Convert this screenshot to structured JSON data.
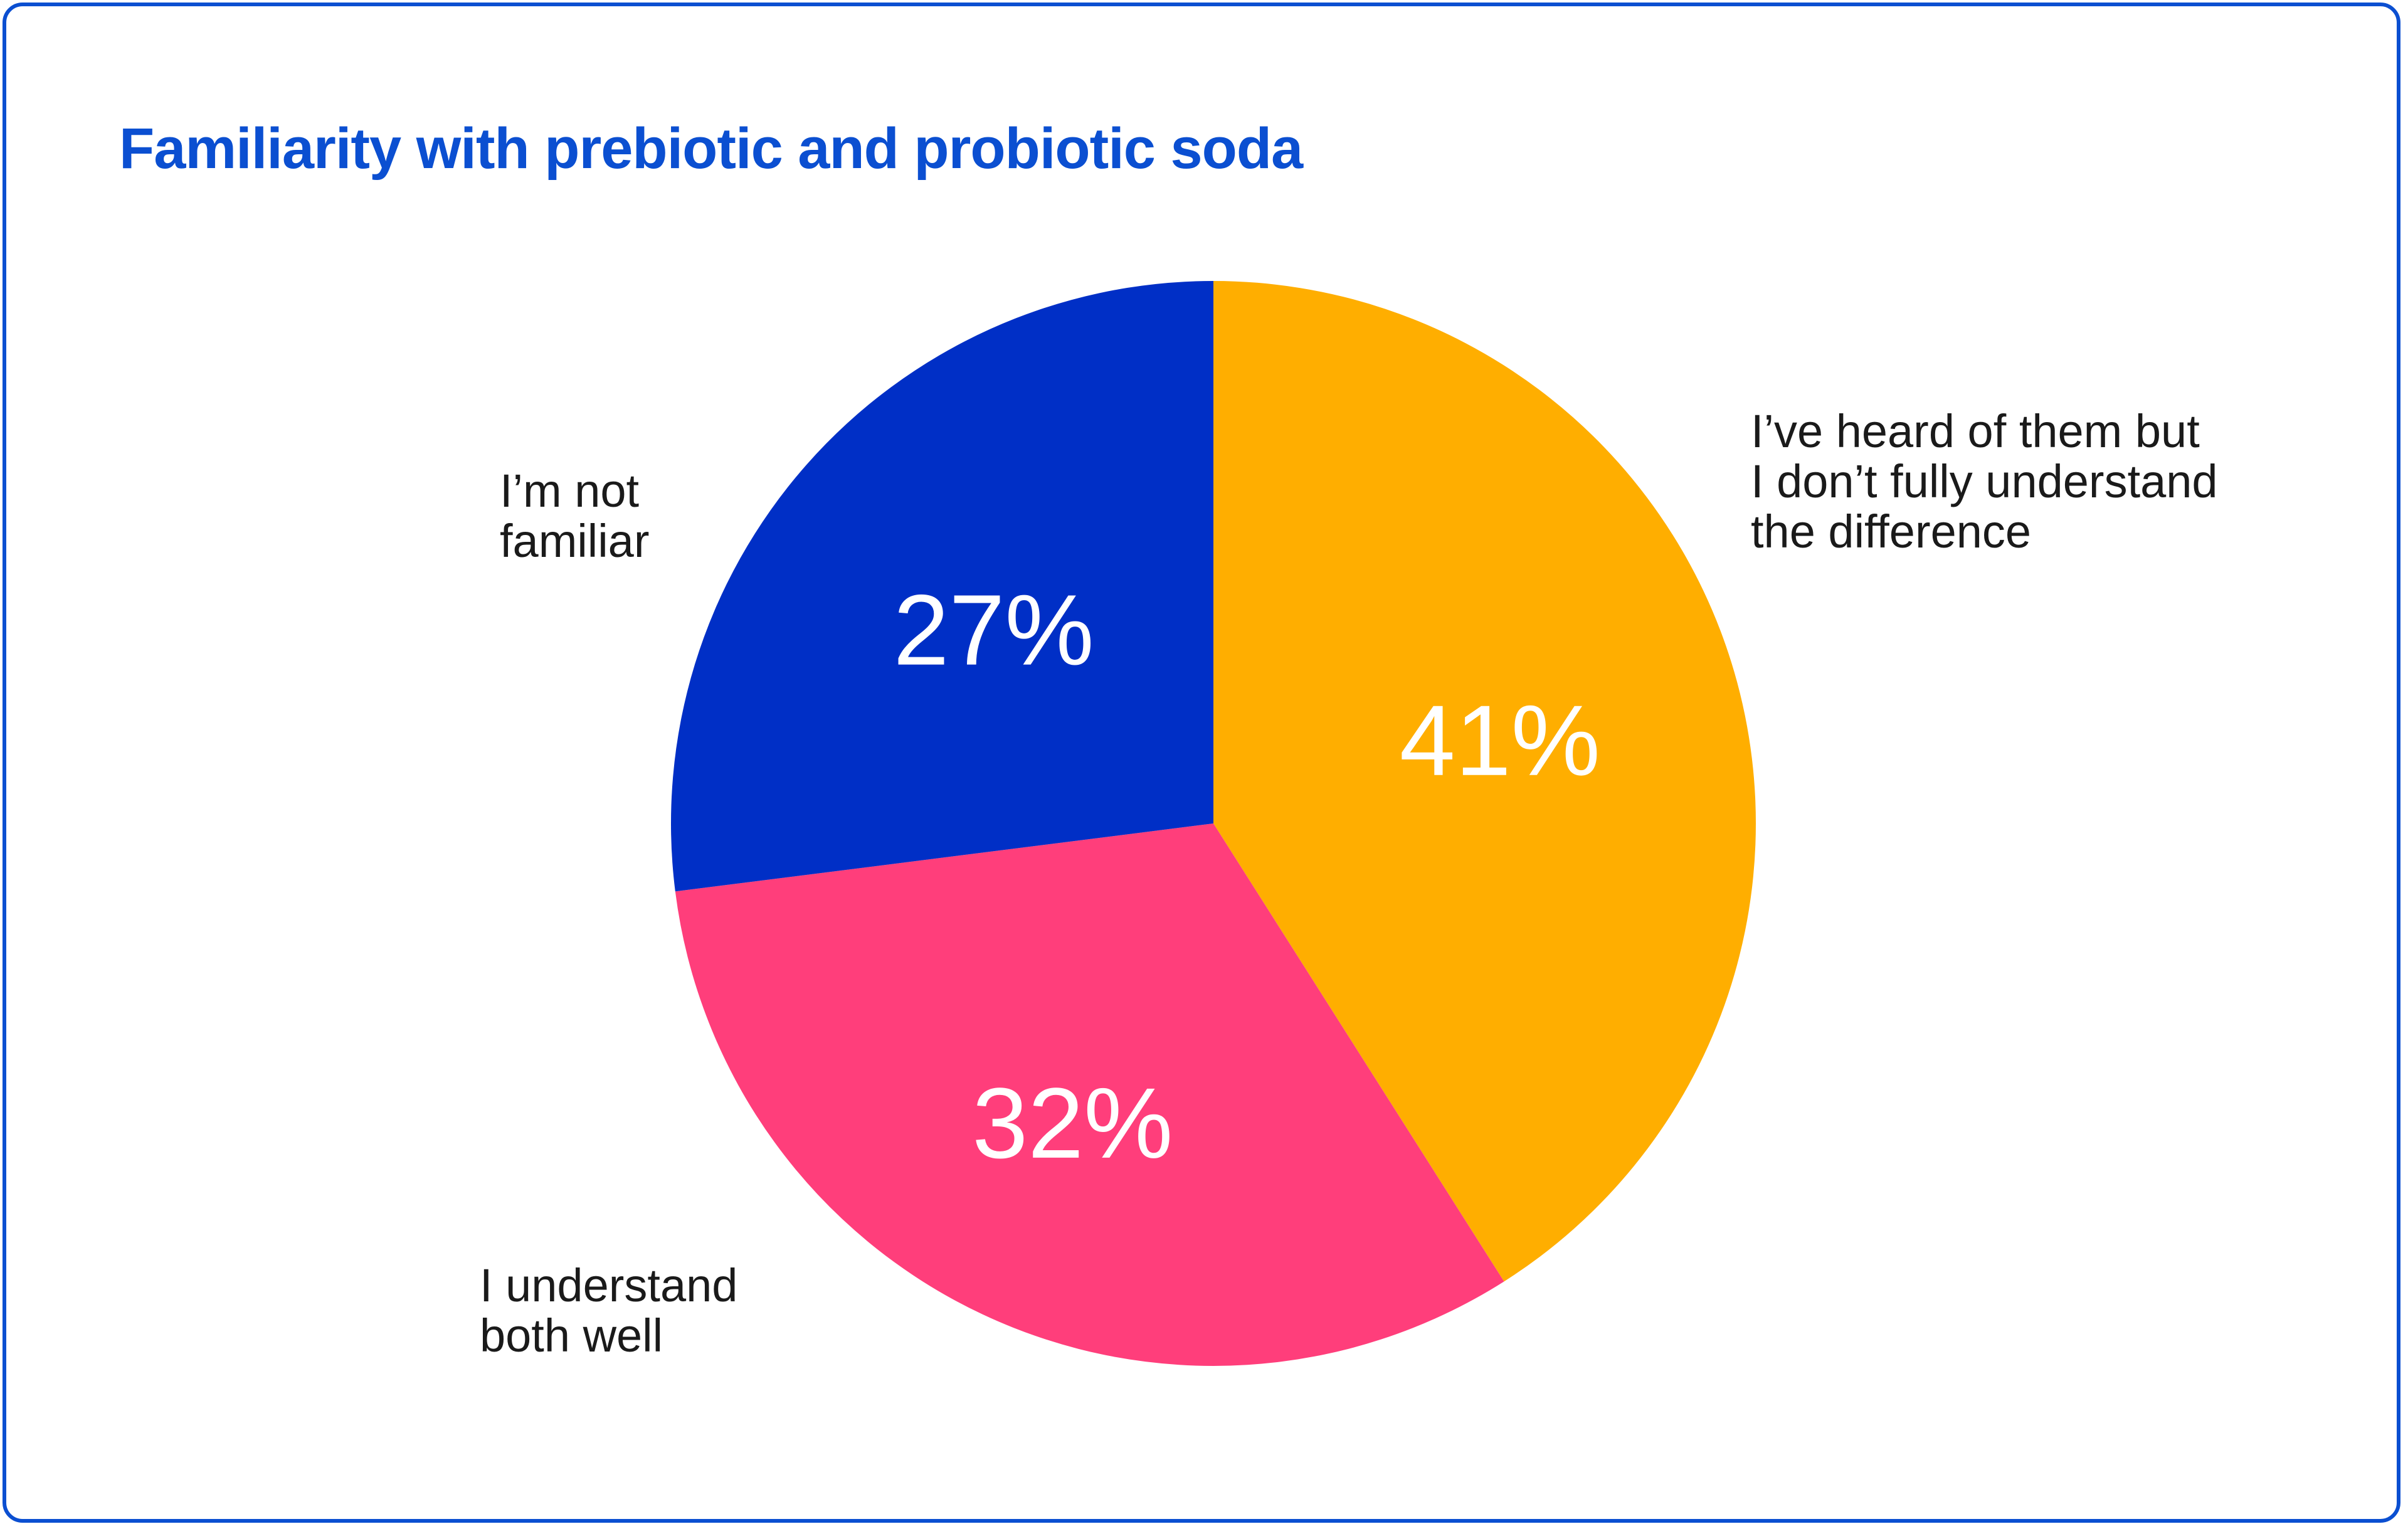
{
  "chart_data": {
    "type": "pie",
    "title": "Familiarity with prebiotic and probiotic soda",
    "slices": [
      {
        "label_lines": [
          "I’ve heard of them but",
          "I don’t fully understand",
          "the difference"
        ],
        "value": 41,
        "value_label": "41%",
        "color": "#ffae00"
      },
      {
        "label_lines": [
          "I understand",
          "both well"
        ],
        "value": 32,
        "value_label": "32%",
        "color": "#ff3e7b"
      },
      {
        "label_lines": [
          "I’m not",
          "familiar"
        ],
        "value": 27,
        "value_label": "27%",
        "color": "#002fc6"
      }
    ],
    "start_angle": "12 o'clock",
    "direction": "clockwise",
    "grid": false,
    "legend": "none (direct labels beside slices)"
  },
  "colors": {
    "title": "#0b4fd1",
    "frame_border": "#0b4fd1",
    "label_text": "#1a1a1a",
    "value_text": "#ffffff"
  }
}
